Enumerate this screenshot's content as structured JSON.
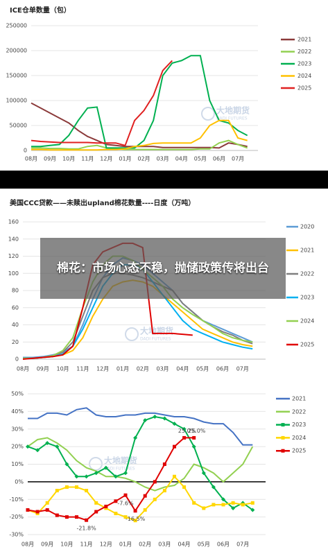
{
  "headline": "棉花：市场心态不稳，抛储政策传将出台",
  "watermark": {
    "cn": "大地期货",
    "en": "DADI FUTURES"
  },
  "chart_data": [
    {
      "type": "line",
      "title": "ICE仓单数量（包）",
      "categories": [
        "08月",
        null,
        "09月",
        null,
        "10月",
        null,
        "11月",
        null,
        "12月",
        null,
        "01月",
        null,
        "02月",
        null,
        "03月",
        null,
        "04月",
        null,
        "05月",
        null,
        "06月",
        null,
        "07月",
        null
      ],
      "ylim": [
        0,
        250000
      ],
      "yticks": [
        0,
        50000,
        100000,
        150000,
        200000,
        250000
      ],
      "grid": true,
      "series": [
        {
          "name": "2021",
          "color": "#8B3A3A",
          "values": [
            95000,
            85000,
            75000,
            65000,
            55000,
            40000,
            28000,
            20000,
            12000,
            10000,
            8000,
            8000,
            8000,
            8000,
            6000,
            6000,
            6000,
            6000,
            6000,
            6000,
            5000,
            15000,
            12000,
            8000
          ]
        },
        {
          "name": "2022",
          "color": "#92D050",
          "values": [
            5000,
            5000,
            4000,
            4000,
            3000,
            3000,
            8000,
            10000,
            5000,
            3000,
            2000,
            2000,
            2000,
            2000,
            2000,
            2000,
            2000,
            2000,
            3000,
            3000,
            15000,
            20000,
            12000,
            5000
          ]
        },
        {
          "name": "2023",
          "color": "#00B050",
          "values": [
            8000,
            8000,
            10000,
            12000,
            30000,
            60000,
            85000,
            87000,
            5000,
            5000,
            5000,
            5000,
            20000,
            60000,
            150000,
            175000,
            180000,
            190000,
            190000,
            100000,
            60000,
            55000,
            40000,
            30000
          ]
        },
        {
          "name": "2024",
          "color": "#FFC000",
          "values": [
            2000,
            2000,
            1000,
            1000,
            1000,
            1000,
            1000,
            1000,
            2000,
            2000,
            3000,
            8000,
            10000,
            14000,
            15000,
            15000,
            15000,
            15000,
            25000,
            50000,
            60000,
            60000,
            25000,
            20000
          ]
        },
        {
          "name": "2025",
          "color": "#E02020",
          "values": [
            20000,
            18000,
            17000,
            16000,
            16000,
            16000,
            16000,
            15000,
            15000,
            15000,
            10000,
            60000,
            80000,
            110000,
            160000,
            180000,
            null,
            null,
            null,
            null,
            null,
            null,
            null,
            null
          ]
        }
      ]
    },
    {
      "type": "line",
      "title": "美国CCC贷款——未赎出upland棉花数量----日度（万吨）",
      "categories": [
        "08月",
        null,
        "09月",
        null,
        "10月",
        null,
        "11月",
        null,
        "12月",
        null,
        "01月",
        null,
        "02月",
        null,
        "03月",
        null,
        "04月",
        null,
        "05月",
        null,
        "06月",
        null,
        "07月",
        null
      ],
      "ylim": [
        0,
        160
      ],
      "yticks": [
        0,
        20,
        40,
        60,
        80,
        100,
        120,
        140,
        160
      ],
      "grid": true,
      "series": [
        {
          "name": "2020",
          "color": "#5B9BD5",
          "values": [
            2,
            2,
            3,
            5,
            8,
            15,
            40,
            70,
            95,
            110,
            118,
            115,
            110,
            100,
            90,
            80,
            65,
            55,
            45,
            40,
            35,
            30,
            25,
            20
          ]
        },
        {
          "name": "2021",
          "color": "#FFC000",
          "values": [
            1,
            1,
            2,
            3,
            5,
            10,
            25,
            50,
            70,
            85,
            90,
            92,
            90,
            85,
            75,
            65,
            55,
            45,
            35,
            30,
            25,
            20,
            17,
            15
          ]
        },
        {
          "name": "2022",
          "color": "#7F7F7F",
          "values": [
            1,
            1,
            2,
            4,
            8,
            20,
            50,
            80,
            95,
            100,
            100,
            98,
            95,
            90,
            85,
            80,
            65,
            55,
            45,
            38,
            32,
            28,
            22,
            18
          ]
        },
        {
          "name": "2023",
          "color": "#00B0F0",
          "values": [
            1,
            1,
            2,
            3,
            6,
            15,
            35,
            60,
            85,
            100,
            110,
            110,
            105,
            90,
            75,
            60,
            45,
            35,
            30,
            25,
            20,
            17,
            14,
            12
          ]
        },
        {
          "name": "2024",
          "color": "#92D050",
          "values": [
            1,
            1,
            2,
            4,
            10,
            25,
            60,
            90,
            110,
            120,
            120,
            115,
            105,
            95,
            85,
            70,
            60,
            52,
            45,
            38,
            30,
            25,
            22,
            20
          ]
        },
        {
          "name": "2025",
          "color": "#E00000",
          "values": [
            0,
            1,
            2,
            3,
            5,
            15,
            60,
            110,
            125,
            130,
            135,
            135,
            130,
            30,
            30,
            30,
            29,
            28,
            null,
            null,
            null,
            null,
            null,
            null
          ]
        }
      ]
    },
    {
      "type": "line",
      "categories": [
        "08月",
        null,
        "09月",
        null,
        "10月",
        null,
        "11月",
        null,
        "12月",
        null,
        "01月",
        null,
        "02月",
        null,
        "03月",
        null,
        "04月",
        null,
        "05月",
        null,
        "06月",
        null,
        "07月",
        null
      ],
      "ylim": [
        -30,
        50
      ],
      "yticks": [
        {
          "value": -30,
          "label": "-30%"
        },
        {
          "value": -20,
          "label": "-20%"
        },
        {
          "value": -10,
          "label": "-10%"
        },
        {
          "value": 0,
          "label": "0%"
        },
        {
          "value": 10,
          "label": "10%"
        },
        {
          "value": 20,
          "label": "20%"
        },
        {
          "value": 30,
          "label": "30%"
        },
        {
          "value": 40,
          "label": "40%"
        },
        {
          "value": 50,
          "label": "50%"
        }
      ],
      "grid": true,
      "series": [
        {
          "name": "2021",
          "color": "#4472C4",
          "values": [
            36,
            36,
            39,
            39,
            38,
            41,
            42,
            38,
            37,
            37,
            38,
            38,
            39,
            39,
            38,
            37,
            37,
            36,
            34,
            33,
            33,
            28,
            21,
            21
          ]
        },
        {
          "name": "2022",
          "color": "#92D050",
          "values": [
            20,
            24,
            25,
            22,
            18,
            12,
            8,
            6,
            3,
            3,
            2,
            0,
            -3,
            -5,
            -3,
            -2,
            2,
            10,
            8,
            5,
            0,
            5,
            10,
            20
          ]
        },
        {
          "name": "2023",
          "color": "#00B050",
          "marker": "diamond",
          "values": [
            20,
            18,
            22,
            20,
            10,
            3,
            3,
            5,
            8,
            3,
            5,
            25,
            35,
            37,
            36,
            33,
            30,
            20,
            5,
            -3,
            -10,
            -15,
            -12,
            -16
          ]
        },
        {
          "name": "2024",
          "color": "#FFD700",
          "marker": "square",
          "values": [
            -16,
            -18,
            -12,
            -5,
            -3,
            -3,
            -5,
            -12,
            -15,
            -18,
            -20,
            -22,
            -16,
            -10,
            -5,
            3,
            -3,
            -12,
            -15,
            -13,
            -13,
            -12,
            -13,
            -12
          ]
        },
        {
          "name": "2025",
          "color": "#E00000",
          "marker": "square",
          "values": [
            -16,
            -17,
            -16,
            -19,
            -20,
            -20,
            -21.8,
            -17,
            -14,
            -11,
            -7.6,
            -16.5,
            -8,
            0,
            10,
            20,
            25,
            25,
            null,
            null,
            null,
            null,
            null,
            null
          ],
          "value_labels": [
            null,
            null,
            null,
            null,
            null,
            null,
            "-21.8%",
            null,
            null,
            null,
            "-7.6%",
            "-16.5%",
            null,
            null,
            null,
            null,
            "25.0%",
            "25.0%",
            null,
            null,
            null,
            null,
            null,
            null
          ]
        }
      ]
    }
  ]
}
